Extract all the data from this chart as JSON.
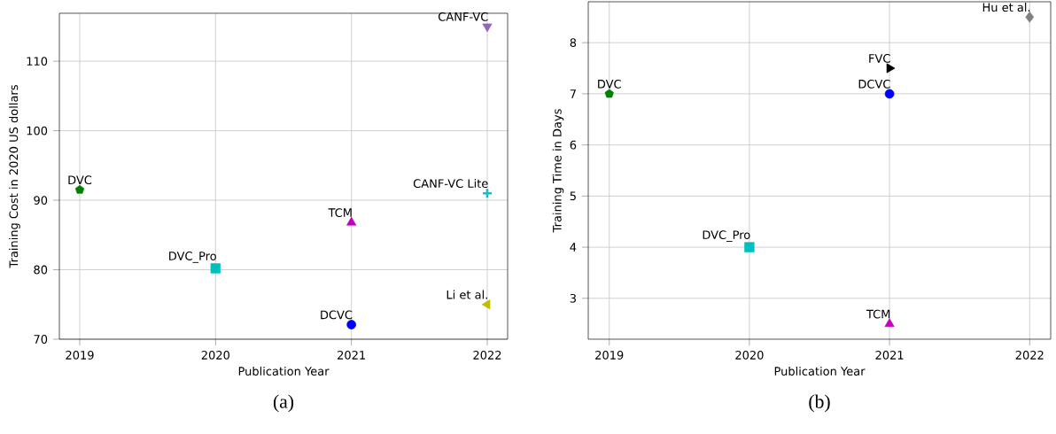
{
  "chart_data": [
    {
      "type": "scatter",
      "xlabel": "Publication Year",
      "ylabel": "Training Cost in 2020 US dollars",
      "annotations": [
        "(a)"
      ],
      "xlim": [
        2018.85,
        2022.15
      ],
      "ylim": [
        70,
        116.9
      ],
      "xticks": [
        2019,
        2020,
        2021,
        2022
      ],
      "yticks": [
        70,
        80,
        90,
        100,
        110
      ],
      "grid": true,
      "series": [
        {
          "name": "DVC",
          "color": "#008000",
          "x": [
            2019
          ],
          "values": [
            91.5
          ]
        },
        {
          "name": "DVC_Pro",
          "color": "#00bfbf",
          "marker": "square",
          "x": [
            2020
          ],
          "values": [
            80.2
          ]
        },
        {
          "name": "DCVC",
          "color": "#0000ff",
          "marker": "circle",
          "x": [
            2021
          ],
          "values": [
            72.1
          ]
        },
        {
          "name": "TCM",
          "color": "#bf00bf",
          "marker": "triangle",
          "x": [
            2021
          ],
          "values": [
            86.8
          ]
        },
        {
          "name": "CANF-VC",
          "color": "#9467bd",
          "marker": "triangle_down",
          "x": [
            2022
          ],
          "values": [
            115
          ]
        },
        {
          "name": "CANF-VC Lite",
          "color": "#17becf",
          "marker": "plus",
          "x": [
            2022
          ],
          "values": [
            91
          ]
        },
        {
          "name": "Li et al.",
          "color": "#bfbf00",
          "marker": "triangle_left",
          "x": [
            2022
          ],
          "values": [
            75
          ]
        }
      ]
    },
    {
      "type": "scatter",
      "xlabel": "Publication Year",
      "ylabel": "Training Time in Days",
      "annotations": [
        "(b)"
      ],
      "xlim": [
        2018.85,
        2022.15
      ],
      "ylim": [
        2.2,
        8.8
      ],
      "xticks": [
        2019,
        2020,
        2021,
        2022
      ],
      "yticks": [
        3,
        4,
        5,
        6,
        7,
        8
      ],
      "grid": true,
      "series": [
        {
          "name": "DVC",
          "color": "#008000",
          "x": [
            2019
          ],
          "values": [
            7
          ]
        },
        {
          "name": "DVC_Pro",
          "color": "#00bfbf",
          "marker": "square",
          "x": [
            2020
          ],
          "values": [
            4
          ]
        },
        {
          "name": "DCVC",
          "color": "#0000ff",
          "marker": "circle",
          "x": [
            2021
          ],
          "values": [
            7
          ]
        },
        {
          "name": "FVC",
          "color": "#000000",
          "marker": "triangle_right",
          "x": [
            2021
          ],
          "values": [
            7.5
          ]
        },
        {
          "name": "TCM",
          "color": "#bf00bf",
          "marker": "triangle",
          "x": [
            2021
          ],
          "values": [
            2.5
          ]
        },
        {
          "name": "Hu et al.",
          "color": "#808080",
          "marker": "diamond",
          "x": [
            2022
          ],
          "values": [
            8.5
          ]
        }
      ]
    }
  ]
}
